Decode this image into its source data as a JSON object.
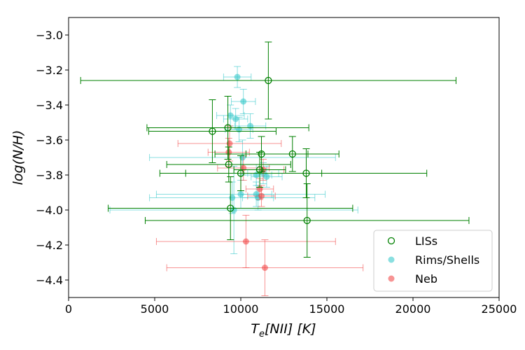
{
  "chart_data": {
    "type": "scatter",
    "title": "",
    "xlabel_main": "T",
    "xlabel_sub": "e",
    "xlabel_rest": "[NII] [K]",
    "ylabel": "log(N/H)",
    "xlim": [
      0,
      25000
    ],
    "ylim": [
      -4.5,
      -2.9
    ],
    "xticks": [
      0,
      5000,
      10000,
      15000,
      20000,
      25000
    ],
    "yticks": [
      -4.4,
      -4.2,
      -4.0,
      -3.8,
      -3.6,
      -3.4,
      -3.2,
      -3.0
    ],
    "grid": false,
    "legend_position": "lower-right",
    "series": [
      {
        "name": "Rims/Shells",
        "key": "rims",
        "color": "#2ac4c6",
        "marker": "filled-circle",
        "points": [
          {
            "x": 9800,
            "y": -3.24,
            "xerr": 800,
            "yerr": 0.06
          },
          {
            "x": 10150,
            "y": -3.38,
            "xerr": 700,
            "yerr": 0.07
          },
          {
            "x": 9400,
            "y": -3.46,
            "xerr": 800,
            "yerr": 0.06
          },
          {
            "x": 9700,
            "y": -3.48,
            "xerr": 700,
            "yerr": 0.06
          },
          {
            "x": 9900,
            "y": -3.54,
            "xerr": 800,
            "yerr": 0.07
          },
          {
            "x": 10550,
            "y": -3.52,
            "xerr": 900,
            "yerr": 0.07
          },
          {
            "x": 10100,
            "y": -3.7,
            "xerr": 5400,
            "yerr": 0.1
          },
          {
            "x": 11300,
            "y": -3.79,
            "xerr": 900,
            "yerr": 0.06
          },
          {
            "x": 10900,
            "y": -3.8,
            "xerr": 900,
            "yerr": 0.06
          },
          {
            "x": 11500,
            "y": -3.81,
            "xerr": 900,
            "yerr": 0.06
          },
          {
            "x": 10000,
            "y": -3.91,
            "xerr": 4900,
            "yerr": 0.08
          },
          {
            "x": 10900,
            "y": -3.91,
            "xerr": 900,
            "yerr": 0.07
          },
          {
            "x": 9500,
            "y": -3.93,
            "xerr": 4800,
            "yerr": 0.09
          },
          {
            "x": 11000,
            "y": -3.93,
            "xerr": 900,
            "yerr": 0.07
          },
          {
            "x": 9600,
            "y": -4.0,
            "xerr": 7200,
            "yerr": 0.25
          }
        ]
      },
      {
        "name": "Neb",
        "key": "neb",
        "color": "#f03c3c",
        "marker": "filled-circle",
        "points": [
          {
            "x": 9350,
            "y": -3.62,
            "xerr": 3000,
            "yerr": 0.1
          },
          {
            "x": 9300,
            "y": -3.67,
            "xerr": 1200,
            "yerr": 0.08
          },
          {
            "x": 10150,
            "y": -3.76,
            "xerr": 1500,
            "yerr": 0.07
          },
          {
            "x": 11300,
            "y": -3.77,
            "xerr": 1200,
            "yerr": 0.06
          },
          {
            "x": 11100,
            "y": -3.88,
            "xerr": 800,
            "yerr": 0.06
          },
          {
            "x": 11200,
            "y": -3.92,
            "xerr": 800,
            "yerr": 0.06
          },
          {
            "x": 10300,
            "y": -4.18,
            "xerr": 5200,
            "yerr": 0.15
          },
          {
            "x": 11400,
            "y": -4.33,
            "xerr": 5700,
            "yerr": 0.16
          }
        ]
      },
      {
        "name": "LISs",
        "key": "liss",
        "color": "#008000",
        "marker": "open-circle",
        "points": [
          {
            "x": 11600,
            "y": -3.26,
            "xerr": 10900,
            "yerr": 0.22
          },
          {
            "x": 8350,
            "y": -3.55,
            "xerr": 3700,
            "yerr": 0.18
          },
          {
            "x": 9250,
            "y": -3.53,
            "xerr": 4700,
            "yerr": 0.18
          },
          {
            "x": 11200,
            "y": -3.68,
            "xerr": 2700,
            "yerr": 0.1
          },
          {
            "x": 13000,
            "y": -3.68,
            "xerr": 2700,
            "yerr": 0.1
          },
          {
            "x": 9300,
            "y": -3.74,
            "xerr": 3600,
            "yerr": 0.1
          },
          {
            "x": 10000,
            "y": -3.79,
            "xerr": 4700,
            "yerr": 0.1
          },
          {
            "x": 11100,
            "y": -3.77,
            "xerr": 1500,
            "yerr": 0.1
          },
          {
            "x": 13800,
            "y": -3.79,
            "xerr": 7000,
            "yerr": 0.14
          },
          {
            "x": 9400,
            "y": -3.99,
            "xerr": 7100,
            "yerr": 0.18
          },
          {
            "x": 13850,
            "y": -4.06,
            "xerr": 9400,
            "yerr": 0.21
          }
        ]
      }
    ],
    "legend": [
      {
        "label": "LISs",
        "key": "liss"
      },
      {
        "label": "Rims/Shells",
        "key": "rims"
      },
      {
        "label": "Neb",
        "key": "neb"
      }
    ]
  }
}
